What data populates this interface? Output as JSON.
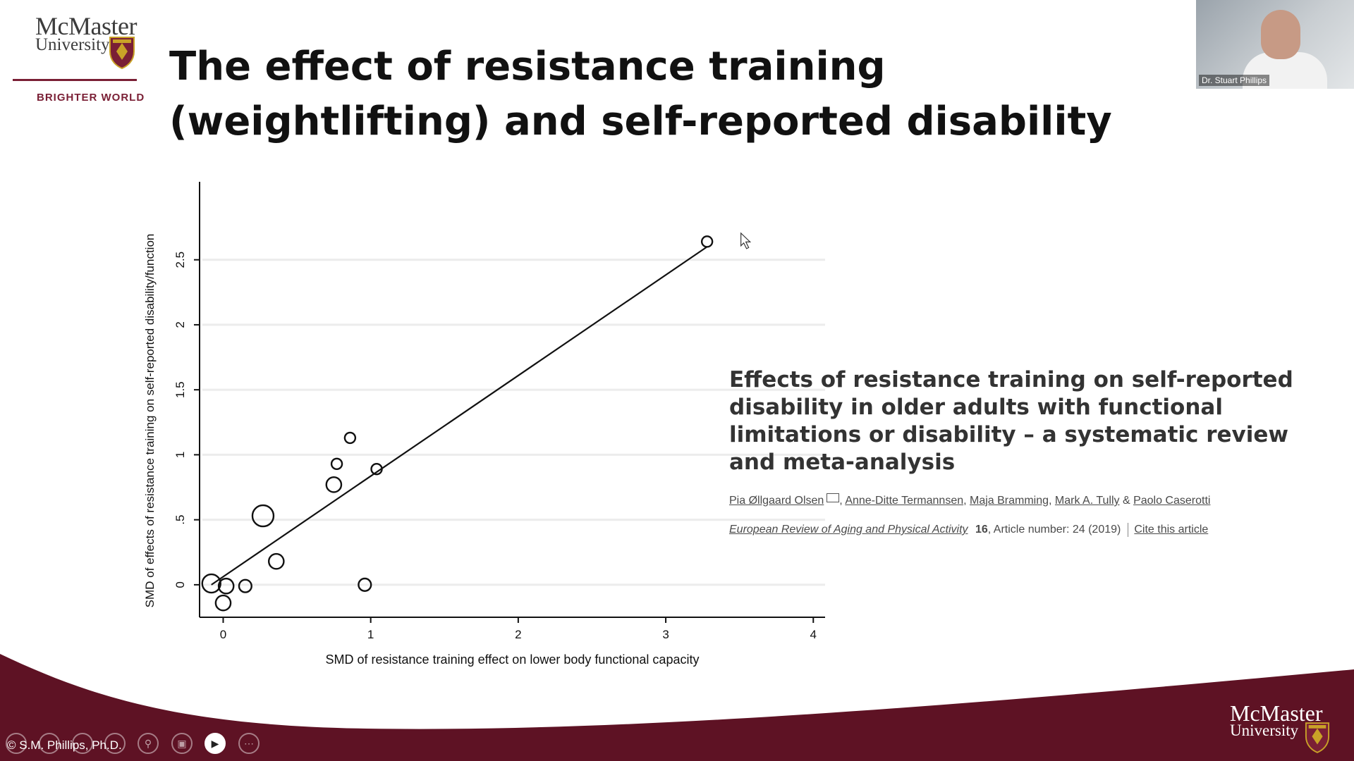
{
  "logo": {
    "word1": "McMaster",
    "word2": "University",
    "tagline": "BRIGHTER WORLD"
  },
  "slide": {
    "title": "The effect of resistance training (weightlifting) and self-reported disability"
  },
  "chart_data": {
    "type": "scatter",
    "xlabel": "SMD of resistance training effect on lower body functional capacity",
    "ylabel": "SMD of effects of resistance training on self-reported disability/function",
    "xlim": [
      -0.16,
      4.08
    ],
    "ylim": [
      -0.25,
      3.1
    ],
    "x_ticks": [
      0,
      1,
      2,
      3,
      4
    ],
    "x_tick_labels": [
      "0",
      "1",
      "2",
      "3",
      "4"
    ],
    "y_ticks": [
      0,
      0.5,
      1,
      1.5,
      2,
      2.5
    ],
    "y_tick_labels": [
      "0",
      ".5",
      "1",
      "1.5",
      "2",
      "2.5"
    ],
    "grid": "horizontal",
    "points": [
      {
        "x": -0.08,
        "y": 0.01,
        "weight": 3
      },
      {
        "x": 0.02,
        "y": -0.01,
        "weight": 2
      },
      {
        "x": 0.0,
        "y": -0.14,
        "weight": 2
      },
      {
        "x": 0.15,
        "y": -0.01,
        "weight": 1.4
      },
      {
        "x": 0.27,
        "y": 0.53,
        "weight": 4
      },
      {
        "x": 0.36,
        "y": 0.18,
        "weight": 2
      },
      {
        "x": 0.75,
        "y": 0.77,
        "weight": 2
      },
      {
        "x": 0.77,
        "y": 0.93,
        "weight": 1
      },
      {
        "x": 0.86,
        "y": 1.13,
        "weight": 1
      },
      {
        "x": 0.96,
        "y": 0.0,
        "weight": 1.4
      },
      {
        "x": 1.04,
        "y": 0.89,
        "weight": 1
      },
      {
        "x": 3.28,
        "y": 2.64,
        "weight": 1
      }
    ],
    "fit_line": {
      "x": [
        -0.08,
        3.28
      ],
      "y": [
        0.0,
        2.6
      ]
    }
  },
  "paper": {
    "title": "Effects of resistance training on self-reported disability in older adults with functional limitations or disability – a systematic review and meta-analysis",
    "authors": [
      "Pia Øllgaard Olsen",
      "Anne-Ditte Termannsen",
      "Maja Bramming",
      "Mark A. Tully",
      "Paolo Caserotti"
    ],
    "author_sep": ", ",
    "author_and": " & ",
    "journal": "European Review of Aging and Physical Activity",
    "volume": "16",
    "article": ", Article number: 24 (2019)",
    "cite": "Cite this article"
  },
  "webcam": {
    "name": "Dr. Stuart Phillips"
  },
  "footer": {
    "copyright": "© S.M. Phillips, Ph.D.",
    "logo_word1": "McMaster",
    "logo_word2": "University"
  },
  "colors": {
    "maroon": "#5e1224",
    "brand": "#7a1f35"
  }
}
